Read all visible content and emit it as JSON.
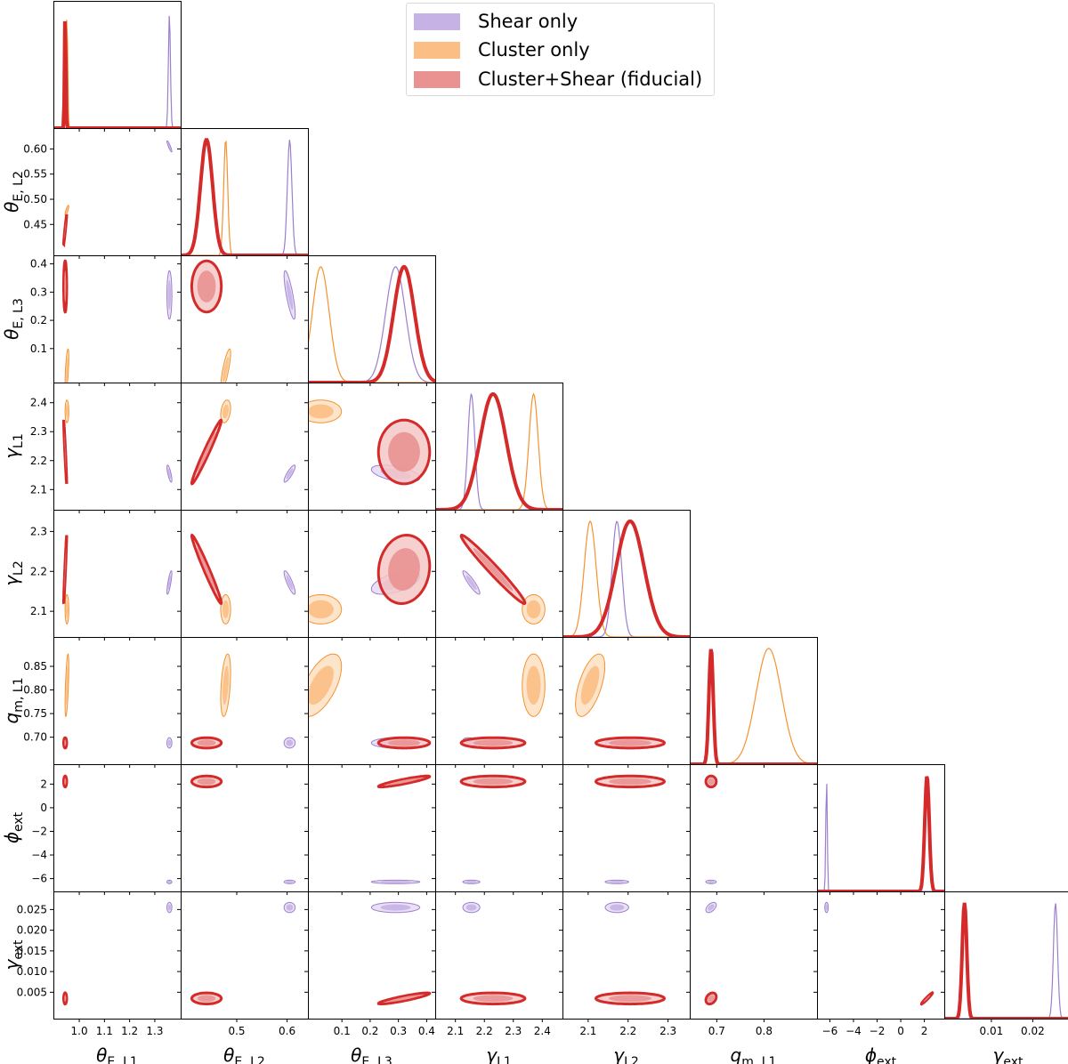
{
  "colors": {
    "shear": "#9b7fce",
    "cluster": "#f5922f",
    "fiducial": "#d42a2a",
    "shear_fill_outer": "#e6dbf3",
    "shear_fill_inner": "#c7b2e6",
    "cluster_fill_outer": "#fde0c2",
    "cluster_fill_inner": "#fbbe84",
    "fiducial_fill_outer": "#f4c7c7",
    "fiducial_fill_inner": "#ea9191"
  },
  "chart_data": {
    "type": "corner",
    "legend": [
      {
        "key": "shear",
        "label": "Shear only"
      },
      {
        "key": "cluster",
        "label": "Cluster only"
      },
      {
        "key": "fiducial",
        "label": "Cluster+Shear (fiducial)"
      }
    ],
    "parameters": [
      {
        "id": "thetaL1",
        "base": "θ",
        "sub": "E, L1",
        "range": [
          0.92,
          1.38
        ],
        "ticks": [
          1.0,
          1.1,
          1.2,
          1.3
        ],
        "ticklabels": [
          "1.0",
          "1.1",
          "1.2",
          "1.3"
        ]
      },
      {
        "id": "thetaL2",
        "base": "θ",
        "sub": "E, L2",
        "range": [
          0.4,
          0.63
        ],
        "ticks": [
          0.45,
          0.5,
          0.55,
          0.6
        ],
        "ticklabels": [
          "0.45",
          "0.50",
          "0.55",
          "0.60"
        ]
      },
      {
        "id": "thetaL3",
        "base": "θ",
        "sub": "E, L3",
        "range": [
          0.0,
          0.41
        ],
        "ticks": [
          0.1,
          0.2,
          0.3,
          0.4
        ],
        "ticklabels": [
          "0.1",
          "0.2",
          "0.3",
          "0.4"
        ]
      },
      {
        "id": "gammaL1",
        "base": "γ",
        "sub": "L1",
        "range": [
          2.05,
          2.45
        ],
        "ticks": [
          2.1,
          2.2,
          2.3,
          2.4
        ],
        "ticklabels": [
          "2.1",
          "2.2",
          "2.3",
          "2.4"
        ]
      },
      {
        "id": "gammaL2",
        "base": "γ",
        "sub": "L2",
        "range": [
          2.05,
          2.34
        ],
        "ticks": [
          2.1,
          2.2,
          2.3
        ],
        "ticklabels": [
          "2.1",
          "2.2",
          "2.3"
        ]
      },
      {
        "id": "qm",
        "base": "q",
        "sub": "m, L1",
        "range": [
          0.655,
          0.9
        ],
        "ticks": [
          0.7,
          0.75,
          0.8,
          0.85
        ],
        "ticklabels": [
          "0.70",
          "0.75",
          "0.80",
          "0.85"
        ]
      },
      {
        "id": "phi",
        "base": "ϕ",
        "sub": "ext",
        "range": [
          -6.6,
          3.2
        ],
        "ticks": [
          -6,
          -4,
          -2,
          0,
          2
        ],
        "ticklabels": [
          "−6",
          "−4",
          "−2",
          "0",
          "2"
        ]
      },
      {
        "id": "gext",
        "base": "γ",
        "sub": "ext",
        "range": [
          0.0,
          0.028
        ],
        "ticks": [
          0.005,
          0.01,
          0.015,
          0.02,
          0.025
        ],
        "ticklabels": [
          "0.005",
          "0.010",
          "0.015",
          "0.020",
          "0.025"
        ]
      }
    ],
    "bottom_tick_indices": [
      [
        1,
        2,
        3
      ],
      [
        2,
        3
      ],
      [
        0,
        1,
        2,
        3
      ],
      [
        0,
        1,
        2,
        3
      ],
      [
        0,
        1,
        2
      ],
      [
        0,
        2
      ],
      [
        0,
        1,
        2,
        3,
        4
      ],
      [
        1,
        2
      ]
    ],
    "bottom_ticklabels_override": {
      "0": [
        "1.0",
        "1.1",
        "1.2",
        "1.3"
      ],
      "1": [
        "0.5",
        "0.6"
      ],
      "2": [
        "0.1",
        "0.2",
        "0.3",
        "0.4"
      ],
      "3": [
        "2.1",
        "2.2",
        "2.3",
        "2.4"
      ],
      "4": [
        "2.1",
        "2.2",
        "2.3"
      ],
      "5": [
        "0.7",
        "0.8"
      ],
      "6": [
        "−6",
        "−4",
        "−2",
        "0",
        "2"
      ],
      "7": [
        "0.01",
        "0.02"
      ]
    },
    "bottom_tick_values": {
      "0": [
        1.0,
        1.1,
        1.2,
        1.3
      ],
      "1": [
        0.5,
        0.6
      ],
      "2": [
        0.1,
        0.2,
        0.3,
        0.4
      ],
      "3": [
        2.1,
        2.2,
        2.3,
        2.4
      ],
      "4": [
        2.1,
        2.2,
        2.3
      ],
      "5": [
        0.7,
        0.8
      ],
      "6": [
        -6,
        -4,
        -2,
        0,
        2
      ],
      "7": [
        0.01,
        0.02
      ]
    },
    "series": [
      {
        "key": "shear",
        "name": "Shear only",
        "mean": {
          "thetaL1": 1.358,
          "thetaL2": 0.605,
          "thetaL3": 0.29,
          "gammaL1": 2.155,
          "gammaL2": 2.172,
          "qm": 0.688,
          "phi": -6.28,
          "gext": 0.0255
        },
        "sd": {
          "thetaL1": 0.004,
          "thetaL2": 0.0045,
          "thetaL3": 0.035,
          "gammaL1": 0.012,
          "gammaL2": 0.012,
          "qm": 0.0045,
          "phi": 0.06,
          "gext": 0.0005
        },
        "corr": {
          "thetaL1|thetaL2": -0.9,
          "thetaL1|gammaL1": -0.75,
          "thetaL1|gammaL2": 0.8,
          "thetaL2|thetaL3": -0.8,
          "thetaL2|gammaL1": 0.85,
          "thetaL2|gammaL2": -0.85,
          "thetaL3|gammaL1": -0.5,
          "thetaL3|gammaL2": 0.55,
          "gammaL1|gammaL2": -0.9,
          "gammaL1|qm": -0.4,
          "gammaL2|qm": 0.3,
          "qm|gext": 0.5
        }
      },
      {
        "key": "cluster",
        "name": "Cluster only",
        "mean": {
          "thetaL1": 0.951,
          "thetaL2": 0.478,
          "thetaL3": 0.025,
          "gammaL1": 2.37,
          "gammaL2": 2.105,
          "qm": 0.81
        },
        "sd": {
          "thetaL1": 0.003,
          "thetaL2": 0.004,
          "thetaL3": 0.03,
          "gammaL1": 0.016,
          "gammaL2": 0.015,
          "qm": 0.027
        },
        "corr": {
          "thetaL1|thetaL2": 0.8,
          "thetaL1|thetaL3": 0.6,
          "thetaL1|qm": 0.6,
          "thetaL2|thetaL3": 0.8,
          "thetaL2|gammaL1": 0.3,
          "thetaL2|qm": 0.4,
          "thetaL3|qm": 0.6,
          "gammaL2|qm": 0.6
        }
      },
      {
        "key": "fiducial",
        "name": "Cluster+Shear (fiducial)",
        "mean": {
          "thetaL1": 0.944,
          "thetaL2": 0.44,
          "thetaL3": 0.32,
          "gammaL1": 2.23,
          "gammaL2": 2.205,
          "qm": 0.688,
          "phi": 2.22,
          "gext": 0.0035
        },
        "sd": {
          "thetaL1": 0.0025,
          "thetaL2": 0.012,
          "thetaL3": 0.037,
          "gammaL1": 0.045,
          "gammaL2": 0.035,
          "qm": 0.0045,
          "phi": 0.19,
          "gext": 0.00055
        },
        "corr": {
          "thetaL1|thetaL2": 0.97,
          "thetaL1|gammaL1": -0.96,
          "thetaL1|gammaL2": 0.96,
          "thetaL2|gammaL1": 0.98,
          "thetaL2|gammaL2": -0.98,
          "thetaL3|gammaL2": 0.1,
          "gammaL1|gammaL2": -0.98,
          "thetaL3|phi": 0.9,
          "thetaL3|gext": 0.9,
          "qm|gext": 0.3,
          "phi|gext": 0.97
        }
      }
    ]
  }
}
